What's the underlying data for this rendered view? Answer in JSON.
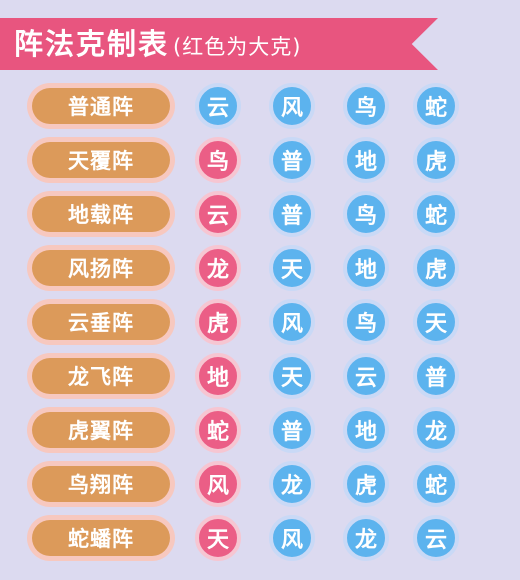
{
  "header": {
    "title": "阵法克制表",
    "subtitle": "(红色为大克)"
  },
  "colors": {
    "banner": "#e8557f",
    "pill": "#dc9a5a",
    "red_cell": "#eb5e86",
    "blue_cell": "#5cb3ee",
    "background": "#dcdaf0"
  },
  "rows": [
    {
      "formation": "普通阵",
      "counters": [
        {
          "text": "云",
          "red": false
        },
        {
          "text": "风",
          "red": false
        },
        {
          "text": "鸟",
          "red": false
        },
        {
          "text": "蛇",
          "red": false
        }
      ]
    },
    {
      "formation": "天覆阵",
      "counters": [
        {
          "text": "鸟",
          "red": true
        },
        {
          "text": "普",
          "red": false
        },
        {
          "text": "地",
          "red": false
        },
        {
          "text": "虎",
          "red": false
        }
      ]
    },
    {
      "formation": "地载阵",
      "counters": [
        {
          "text": "云",
          "red": true
        },
        {
          "text": "普",
          "red": false
        },
        {
          "text": "鸟",
          "red": false
        },
        {
          "text": "蛇",
          "red": false
        }
      ]
    },
    {
      "formation": "风扬阵",
      "counters": [
        {
          "text": "龙",
          "red": true
        },
        {
          "text": "天",
          "red": false
        },
        {
          "text": "地",
          "red": false
        },
        {
          "text": "虎",
          "red": false
        }
      ]
    },
    {
      "formation": "云垂阵",
      "counters": [
        {
          "text": "虎",
          "red": true
        },
        {
          "text": "风",
          "red": false
        },
        {
          "text": "鸟",
          "red": false
        },
        {
          "text": "天",
          "red": false
        }
      ]
    },
    {
      "formation": "龙飞阵",
      "counters": [
        {
          "text": "地",
          "red": true
        },
        {
          "text": "天",
          "red": false
        },
        {
          "text": "云",
          "red": false
        },
        {
          "text": "普",
          "red": false
        }
      ]
    },
    {
      "formation": "虎翼阵",
      "counters": [
        {
          "text": "蛇",
          "red": true
        },
        {
          "text": "普",
          "red": false
        },
        {
          "text": "地",
          "red": false
        },
        {
          "text": "龙",
          "red": false
        }
      ]
    },
    {
      "formation": "鸟翔阵",
      "counters": [
        {
          "text": "风",
          "red": true
        },
        {
          "text": "龙",
          "red": false
        },
        {
          "text": "虎",
          "red": false
        },
        {
          "text": "蛇",
          "red": false
        }
      ]
    },
    {
      "formation": "蛇蟠阵",
      "counters": [
        {
          "text": "天",
          "red": true
        },
        {
          "text": "风",
          "red": false
        },
        {
          "text": "龙",
          "red": false
        },
        {
          "text": "云",
          "red": false
        }
      ]
    }
  ]
}
